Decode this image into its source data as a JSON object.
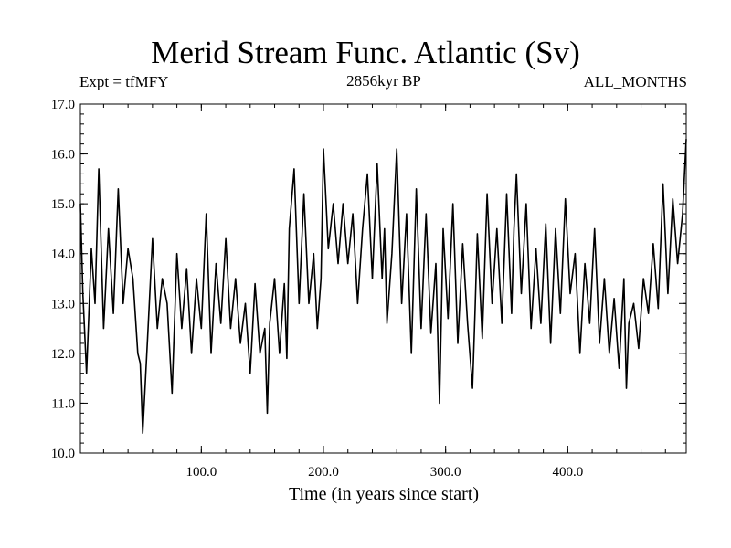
{
  "chart_data": {
    "type": "line",
    "title": "Merid Stream Func. Atlantic (Sv)",
    "subtitle_left": "Expt = tfMFY",
    "subtitle_center": "2856kyr BP",
    "subtitle_right": "ALL_MONTHS",
    "xlabel": "Time (in years since start)",
    "ylabel": "",
    "xlim": [
      1,
      497
    ],
    "ylim": [
      10.0,
      17.0
    ],
    "xticks": [
      100,
      200,
      300,
      400
    ],
    "xtick_labels": [
      "100.0",
      "200.0",
      "300.0",
      "400.0"
    ],
    "yticks": [
      10,
      11,
      12,
      13,
      14,
      15,
      16,
      17
    ],
    "ytick_labels": [
      "10.0",
      "11.0",
      "12.0",
      "13.0",
      "14.0",
      "15.0",
      "16.0",
      "17.0"
    ],
    "grid": false,
    "series": [
      {
        "name": "Merid Stream Func. Atlantic",
        "color": "#000000",
        "x": [
          1,
          3,
          6,
          10,
          13,
          16,
          20,
          24,
          28,
          32,
          36,
          40,
          44,
          48,
          50,
          52,
          56,
          60,
          64,
          68,
          72,
          76,
          80,
          84,
          88,
          92,
          96,
          100,
          104,
          108,
          112,
          116,
          120,
          124,
          128,
          132,
          136,
          140,
          144,
          148,
          152,
          154,
          156,
          160,
          164,
          168,
          170,
          172,
          176,
          180,
          184,
          188,
          192,
          195,
          198,
          200,
          204,
          208,
          212,
          216,
          220,
          224,
          228,
          232,
          236,
          240,
          244,
          248,
          250,
          252,
          256,
          260,
          264,
          268,
          272,
          276,
          280,
          284,
          288,
          292,
          295,
          298,
          302,
          306,
          310,
          314,
          318,
          322,
          324,
          326,
          330,
          334,
          338,
          342,
          346,
          350,
          354,
          356,
          358,
          362,
          366,
          370,
          374,
          378,
          382,
          386,
          390,
          394,
          398,
          402,
          406,
          410,
          414,
          418,
          422,
          426,
          430,
          434,
          438,
          442,
          446,
          448,
          450,
          454,
          458,
          462,
          466,
          470,
          474,
          478,
          482,
          486,
          490,
          494,
          497
        ],
        "values": [
          15.0,
          13.2,
          11.6,
          14.1,
          13.0,
          15.7,
          12.5,
          14.5,
          12.8,
          15.3,
          13.0,
          14.1,
          13.5,
          12.0,
          11.8,
          10.4,
          12.3,
          14.3,
          12.5,
          13.5,
          13.0,
          11.2,
          14.0,
          12.5,
          13.7,
          12.0,
          13.5,
          12.5,
          14.8,
          12.0,
          13.8,
          12.6,
          14.3,
          12.5,
          13.5,
          12.2,
          13.0,
          11.6,
          13.4,
          12.0,
          12.5,
          10.8,
          12.6,
          13.5,
          12.0,
          13.4,
          11.9,
          14.5,
          15.7,
          13.0,
          15.2,
          13.0,
          14.0,
          12.5,
          13.5,
          16.1,
          14.1,
          15.0,
          13.8,
          15.0,
          13.8,
          14.8,
          13.0,
          14.5,
          15.6,
          13.5,
          15.8,
          13.5,
          14.5,
          12.6,
          14.0,
          16.1,
          13.0,
          14.8,
          12.0,
          15.3,
          12.5,
          14.8,
          12.4,
          13.8,
          11.0,
          14.5,
          12.7,
          15.0,
          12.2,
          14.2,
          12.6,
          11.3,
          12.8,
          14.4,
          12.3,
          15.2,
          13.0,
          14.5,
          12.6,
          15.2,
          12.8,
          14.5,
          15.6,
          13.2,
          15.0,
          12.5,
          14.1,
          12.6,
          14.6,
          12.2,
          14.5,
          12.8,
          15.1,
          13.2,
          14.0,
          12.0,
          13.8,
          12.6,
          14.5,
          12.2,
          13.5,
          12.0,
          13.1,
          11.7,
          13.5,
          11.3,
          12.6,
          13.0,
          12.1,
          13.5,
          12.8,
          14.2,
          12.9,
          15.4,
          13.2,
          15.1,
          13.8,
          14.8,
          16.3
        ]
      }
    ]
  }
}
